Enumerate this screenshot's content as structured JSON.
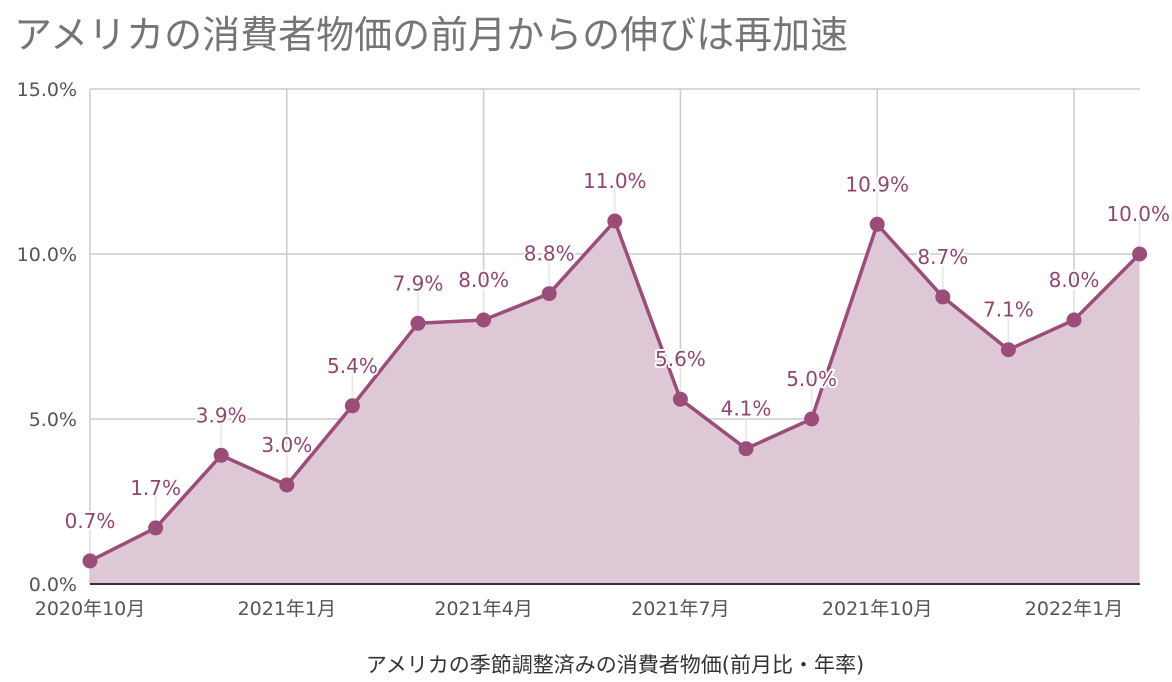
{
  "chart_data": {
    "type": "area",
    "title": "アメリカの消費者物価の前月からの伸びは再加速",
    "xlabel": "アメリカの季節調整済みの消費者物価(前月比・年率)",
    "ylabel": "",
    "ylim": [
      0,
      15
    ],
    "y_ticks": [
      "0.0%",
      "5.0%",
      "10.0%",
      "15.0%"
    ],
    "x_tick_labels": [
      "2020年10月",
      "2021年1月",
      "2021年4月",
      "2021年7月",
      "2021年10月",
      "2022年1月"
    ],
    "x": [
      "2020-10",
      "2020-11",
      "2020-12",
      "2021-01",
      "2021-02",
      "2021-03",
      "2021-04",
      "2021-05",
      "2021-06",
      "2021-07",
      "2021-08",
      "2021-09",
      "2021-10",
      "2021-11",
      "2021-12",
      "2022-01",
      "2022-02"
    ],
    "values": [
      0.7,
      1.7,
      3.9,
      3.0,
      5.4,
      7.9,
      8.0,
      8.8,
      11.0,
      5.6,
      4.1,
      5.0,
      10.9,
      8.7,
      7.1,
      8.0,
      10.0
    ],
    "data_labels": [
      "0.7%",
      "1.7%",
      "3.9%",
      "3.0%",
      "5.4%",
      "7.9%",
      "8.0%",
      "8.8%",
      "11.0%",
      "5.6%",
      "4.1%",
      "5.0%",
      "10.9%",
      "8.7%",
      "7.1%",
      "8.0%",
      "10.0%"
    ],
    "colors": {
      "line": "#9b4d7a",
      "fill": "#dfc8d5",
      "grid": "#cccccc",
      "axis": "#333333",
      "label": "#8e4771",
      "tick": "#555555"
    },
    "grid": true,
    "legend": "none"
  }
}
